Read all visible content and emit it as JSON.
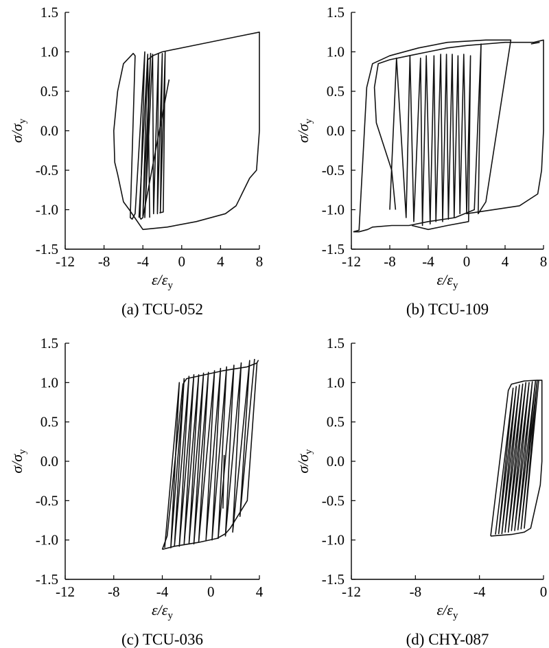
{
  "chart_data": [
    {
      "type": "line",
      "caption": "(a) TCU-052",
      "xlabel": "ε/ε",
      "xlabel_sub": "y",
      "ylabel": "σ/σ",
      "ylabel_sub": "y",
      "xlim": [
        -12,
        8
      ],
      "ylim": [
        -1.5,
        1.5
      ],
      "xticks": [
        -12,
        -8,
        -4,
        0,
        4,
        8
      ],
      "yticks": [
        -1.5,
        -1.0,
        -0.5,
        0.0,
        0.5,
        1.0,
        1.5
      ],
      "ytick_labels": [
        "-1.5",
        "-1.0",
        "-0.5",
        "0.0",
        "0.5",
        "1.0",
        "1.5"
      ],
      "series": [
        {
          "x": [
            -1.3,
            -4.0,
            -4.2,
            -4.3,
            -3.8,
            -4.8,
            -5.1,
            -5.3,
            -4.8,
            -5.0,
            -6.0,
            -6.6,
            -7.0,
            -6.9,
            -6.6,
            -6.0,
            -5.4,
            -4.0,
            -1.5,
            1.5,
            4.5,
            5.6,
            6.0,
            6.2,
            7.0,
            7.7,
            8.0,
            8.0,
            6.0,
            2.0,
            -2.0,
            -3.0,
            -3.5,
            -3.3
          ],
          "y": [
            0.65,
            -1.1,
            -1.12,
            -1.1,
            1.0,
            -1.05,
            -1.12,
            -1.1,
            0.95,
            0.98,
            0.85,
            0.5,
            0.0,
            -0.4,
            -0.55,
            -0.9,
            -1.0,
            -1.25,
            -1.22,
            -1.15,
            -1.05,
            -0.95,
            -0.85,
            -0.8,
            -0.6,
            -0.5,
            0.0,
            1.25,
            1.2,
            1.1,
            1.0,
            0.95,
            0.9,
            -1.1
          ]
        },
        {
          "x": [
            -4.4,
            -3.5,
            -4.0,
            -3.2,
            -3.8,
            -3.0,
            -2.9,
            -2.4,
            -2.5,
            -2.0,
            -2.2,
            -1.7,
            -1.9,
            -2.3
          ],
          "y": [
            -1.1,
            0.97,
            -1.08,
            0.98,
            -1.1,
            0.97,
            -1.05,
            0.98,
            -1.05,
            0.98,
            -1.04,
            1.0,
            -1.03,
            -1.04
          ]
        }
      ]
    },
    {
      "type": "line",
      "caption": "(b) TCU-109",
      "xlabel": "ε/ε",
      "xlabel_sub": "y",
      "ylabel": "σ/σ",
      "ylabel_sub": "y",
      "xlim": [
        -12,
        8
      ],
      "ylim": [
        -1.5,
        1.5
      ],
      "xticks": [
        -12,
        -8,
        -4,
        0,
        4,
        8
      ],
      "yticks": [
        -1.5,
        -1.0,
        -0.5,
        0.0,
        0.5,
        1.0,
        1.5
      ],
      "ytick_labels": [
        "-1.5",
        "-1.0",
        "-0.5",
        "0.0",
        "0.5",
        "1.0",
        "1.5"
      ],
      "series": [
        {
          "x": [
            -11.8,
            -11.2,
            -10.4,
            -9.8,
            -8.0,
            -5.0,
            -2.0,
            2.0,
            4.0,
            4.6,
            2.0,
            1.2,
            1.5,
            0.8,
            -1.2,
            -4.0,
            -6.0,
            -7.8,
            -9.8,
            -10.3,
            -11.2,
            -11.8
          ],
          "y": [
            -1.28,
            -1.26,
            0.55,
            0.85,
            0.95,
            1.05,
            1.12,
            1.15,
            1.15,
            1.15,
            -0.9,
            -1.05,
            1.1,
            -1.0,
            -1.1,
            -1.15,
            -1.2,
            -1.2,
            -1.22,
            -1.25,
            -1.28,
            -1.28
          ]
        },
        {
          "x": [
            -8.0,
            -7.3,
            -6.3,
            -5.9,
            -5.5,
            -4.8,
            -4.6,
            -4.2,
            -3.8,
            -3.4,
            -3.2,
            -2.7,
            -2.5,
            -2.1,
            -1.9,
            -1.5,
            -1.3,
            -0.9,
            -0.7,
            -0.3,
            0.0,
            0.4,
            0.2,
            -2.0,
            -4.0,
            -5.7
          ],
          "y": [
            -1.0,
            0.92,
            -1.1,
            0.95,
            -1.15,
            0.92,
            -1.2,
            0.95,
            -1.18,
            0.95,
            -1.15,
            0.97,
            -1.15,
            0.97,
            -1.12,
            0.97,
            -1.1,
            0.95,
            -1.05,
            0.97,
            -1.05,
            0.95,
            -1.15,
            -1.2,
            -1.25,
            -1.2
          ]
        },
        {
          "x": [
            0.0,
            5.5,
            7.4,
            7.8,
            8.0,
            8.0,
            7.0,
            6.0,
            4.0,
            2.0,
            0.0,
            -2.0,
            -4.0,
            -6.0,
            -8.0,
            -9.2,
            -9.6,
            -9.4,
            -7.8,
            -7.4
          ],
          "y": [
            -1.05,
            -0.95,
            -0.8,
            -0.5,
            0.0,
            1.15,
            1.12,
            1.12,
            1.12,
            1.1,
            1.08,
            1.05,
            1.0,
            0.95,
            0.9,
            0.85,
            0.55,
            0.1,
            -0.5,
            -1.0
          ]
        },
        {
          "x": [
            6.7,
            7.6
          ],
          "y": [
            1.1,
            1.12
          ]
        }
      ]
    },
    {
      "type": "line",
      "caption": "(c) TCU-036",
      "xlabel": "ε/ε",
      "xlabel_sub": "y",
      "ylabel": "σ/σ",
      "ylabel_sub": "y",
      "xlim": [
        -12,
        4
      ],
      "ylim": [
        -1.5,
        1.5
      ],
      "xticks": [
        -12,
        -8,
        -4,
        0,
        4
      ],
      "yticks": [
        -1.5,
        -1.0,
        -0.5,
        0.0,
        0.5,
        1.0,
        1.5
      ],
      "ytick_labels": [
        "-1.5",
        "-1.0",
        "-0.5",
        "0.0",
        "0.5",
        "1.0",
        "1.5"
      ],
      "series": [
        {
          "x": [
            -4.0,
            -3.6,
            -2.3,
            -2.0,
            -0.5,
            1.0,
            3.0,
            3.8,
            3.9,
            3.8,
            3.0,
            1.6,
            1.2,
            0.5,
            -1.0,
            -3.0,
            -4.0
          ],
          "y": [
            -1.12,
            -0.95,
            0.98,
            1.05,
            1.1,
            1.15,
            1.2,
            1.25,
            1.28,
            1.25,
            -0.5,
            -0.85,
            -0.92,
            -0.98,
            -1.03,
            -1.08,
            -1.12
          ]
        },
        {
          "x": [
            -3.8,
            -2.6,
            -3.3,
            -2.2,
            -3.0,
            -1.8,
            -2.6,
            -1.4,
            -2.2,
            -1.0,
            -1.8,
            -0.6,
            -1.4,
            -0.2,
            -1.0,
            0.3,
            -0.4,
            0.8,
            0.1,
            1.3,
            0.6,
            1.9,
            1.2,
            2.5,
            1.8,
            3.2,
            2.4,
            3.6
          ],
          "y": [
            -1.1,
            1.0,
            -1.1,
            1.05,
            -1.08,
            1.08,
            -1.08,
            1.1,
            -1.05,
            1.1,
            -1.05,
            1.12,
            -1.05,
            1.13,
            -1.02,
            1.15,
            -1.0,
            1.18,
            -1.0,
            1.2,
            -0.98,
            1.22,
            -0.95,
            1.25,
            -0.9,
            1.28,
            -0.7,
            1.3
          ]
        },
        {
          "x": [
            1.0,
            1.1
          ],
          "y": [
            -0.6,
            0.08
          ]
        }
      ]
    },
    {
      "type": "line",
      "caption": "(d) CHY-087",
      "xlabel": "ε/ε",
      "xlabel_sub": "y",
      "ylabel": "σ/σ",
      "ylabel_sub": "y",
      "xlim": [
        -12,
        0
      ],
      "ylim": [
        -1.5,
        1.5
      ],
      "xticks": [
        -12,
        -8,
        -4,
        0
      ],
      "yticks": [
        -1.5,
        -1.0,
        -0.5,
        0.0,
        0.5,
        1.0,
        1.5
      ],
      "ytick_labels": [
        "-1.5",
        "-1.0",
        "-0.5",
        "0.0",
        "0.5",
        "1.0",
        "1.5"
      ],
      "series": [
        {
          "x": [
            -3.3,
            -2.2,
            -2.0,
            -1.2,
            -0.4,
            -0.1,
            -0.1,
            -0.2,
            -0.8,
            -1.2,
            -2.0,
            -3.3
          ],
          "y": [
            -0.95,
            0.9,
            0.98,
            1.02,
            1.03,
            1.03,
            0.0,
            -0.3,
            -0.85,
            -0.9,
            -0.93,
            -0.95
          ]
        },
        {
          "x": [
            -3.0,
            -1.9,
            -2.8,
            -1.7,
            -2.6,
            -1.5,
            -2.4,
            -1.3,
            -2.2,
            -1.1,
            -2.0,
            -0.9,
            -1.8,
            -0.7,
            -1.6,
            -0.5,
            -1.4,
            -0.4,
            -1.2,
            -0.3
          ],
          "y": [
            -0.93,
            0.93,
            -0.92,
            0.95,
            -0.92,
            0.97,
            -0.9,
            0.98,
            -0.9,
            1.0,
            -0.88,
            1.0,
            -0.88,
            1.01,
            -0.87,
            1.02,
            -0.86,
            1.02,
            -0.85,
            1.03
          ]
        }
      ]
    }
  ]
}
